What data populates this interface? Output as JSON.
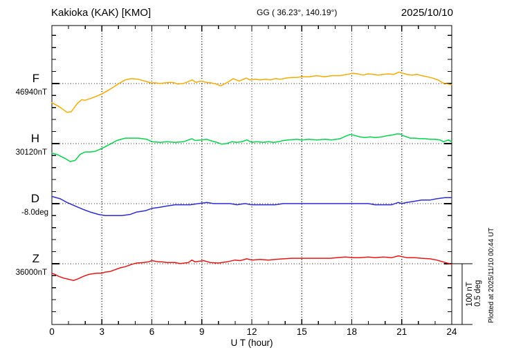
{
  "header": {
    "station": "Kakioka (KAK)  [KMO]",
    "coordinates": "GG ( 36.23°, 140.19°)",
    "date": "2025/10/10"
  },
  "axis": {
    "xlabel": "U T (hour)",
    "x_tick_labels": [
      "0",
      "3",
      "6",
      "9",
      "12",
      "15",
      "18",
      "21",
      "24"
    ]
  },
  "scale_bar": {
    "lines": [
      "100 nT",
      "0.5 deg"
    ]
  },
  "plotted_at": "Plotted at 2025/11/10 00:44 UT",
  "chart_data": {
    "type": "line",
    "title": "Kakioka (KAK) [KMO] magnetogram",
    "date": "2025/10/10",
    "xlabel": "U T (hour)",
    "x_range_hours": [
      0,
      24
    ],
    "x_major_tick_hours": [
      0,
      3,
      6,
      9,
      12,
      15,
      18,
      21,
      24
    ],
    "grid": "dotted vertical every 3 h and dotted horizontal at each component baseline",
    "legend_position": "left margin, one colored label per trace",
    "scale": {
      "bar_nT": 100,
      "bar_deg": 0.5
    },
    "series": [
      {
        "id": "F",
        "label": "F",
        "baseline_text": "46940nT",
        "baseline_value": 46940,
        "unit": "nT",
        "color": "#f6ab00",
        "points": [
          [
            0,
            46908
          ],
          [
            0.46,
            46901
          ],
          [
            0.91,
            46892
          ],
          [
            1.16,
            46893
          ],
          [
            1.54,
            46907
          ],
          [
            1.79,
            46913
          ],
          [
            1.99,
            46912
          ],
          [
            2.33,
            46915
          ],
          [
            2.7,
            46919
          ],
          [
            3.03,
            46923
          ],
          [
            3.53,
            46931
          ],
          [
            4.03,
            46940
          ],
          [
            4.4,
            46946
          ],
          [
            4.77,
            46948
          ],
          [
            5.19,
            46947
          ],
          [
            5.56,
            46944
          ],
          [
            5.94,
            46941
          ],
          [
            6.19,
            46941
          ],
          [
            6.48,
            46940
          ],
          [
            6.81,
            46941
          ],
          [
            7.1,
            46942
          ],
          [
            7.35,
            46941
          ],
          [
            7.56,
            46939
          ],
          [
            7.89,
            46940
          ],
          [
            8.18,
            46943
          ],
          [
            8.43,
            46946
          ],
          [
            8.64,
            46942
          ],
          [
            8.97,
            46944
          ],
          [
            9.26,
            46942
          ],
          [
            9.55,
            46941
          ],
          [
            9.88,
            46939
          ],
          [
            10.13,
            46936
          ],
          [
            10.34,
            46939
          ],
          [
            10.67,
            46944
          ],
          [
            10.88,
            46948
          ],
          [
            11.25,
            46944
          ],
          [
            11.67,
            46949
          ],
          [
            11.87,
            46946
          ],
          [
            12.21,
            46947
          ],
          [
            12.5,
            46946
          ],
          [
            12.83,
            46947
          ],
          [
            13.12,
            46946
          ],
          [
            13.41,
            46948
          ],
          [
            13.74,
            46947
          ],
          [
            14.03,
            46949
          ],
          [
            14.37,
            46950
          ],
          [
            14.66,
            46950
          ],
          [
            15.03,
            46951
          ],
          [
            15.44,
            46951
          ],
          [
            15.9,
            46953
          ],
          [
            16.36,
            46951
          ],
          [
            16.82,
            46953
          ],
          [
            17.27,
            46953
          ],
          [
            17.73,
            46955
          ],
          [
            18.06,
            46957
          ],
          [
            18.35,
            46956
          ],
          [
            18.68,
            46954
          ],
          [
            18.97,
            46956
          ],
          [
            19.31,
            46955
          ],
          [
            19.6,
            46954
          ],
          [
            19.89,
            46955
          ],
          [
            20.22,
            46956
          ],
          [
            20.51,
            46955
          ],
          [
            20.84,
            46959
          ],
          [
            21.3,
            46955
          ],
          [
            21.59,
            46954
          ],
          [
            21.92,
            46955
          ],
          [
            22.21,
            46953
          ],
          [
            22.55,
            46951
          ],
          [
            22.84,
            46949
          ],
          [
            23.17,
            46946
          ],
          [
            23.46,
            46941
          ],
          [
            23.79,
            46939
          ],
          [
            24,
            46938
          ]
        ]
      },
      {
        "id": "H",
        "label": "H",
        "baseline_text": "30120nT",
        "baseline_value": 30120,
        "unit": "nT",
        "color": "#00d44a",
        "points": [
          [
            0,
            30104
          ],
          [
            0.3,
            30102
          ],
          [
            0.8,
            30095
          ],
          [
            1.1,
            30090
          ],
          [
            1.4,
            30092
          ],
          [
            1.7,
            30102
          ],
          [
            2.0,
            30106
          ],
          [
            2.3,
            30106
          ],
          [
            2.6,
            30107
          ],
          [
            3.0,
            30112
          ],
          [
            3.5,
            30119
          ],
          [
            3.9,
            30125
          ],
          [
            4.4,
            30129
          ],
          [
            4.8,
            30129
          ],
          [
            5.2,
            30129
          ],
          [
            5.7,
            30127
          ],
          [
            6.0,
            30123
          ],
          [
            6.5,
            30122
          ],
          [
            6.9,
            30123
          ],
          [
            7.4,
            30122
          ],
          [
            7.9,
            30123
          ],
          [
            8.2,
            30126
          ],
          [
            8.4,
            30128
          ],
          [
            8.6,
            30125
          ],
          [
            9.0,
            30126
          ],
          [
            9.3,
            30127
          ],
          [
            9.5,
            30125
          ],
          [
            9.9,
            30122
          ],
          [
            10.2,
            30119
          ],
          [
            10.5,
            30120
          ],
          [
            10.8,
            30123
          ],
          [
            11.1,
            30122
          ],
          [
            11.4,
            30123
          ],
          [
            11.7,
            30126
          ],
          [
            12.0,
            30122
          ],
          [
            12.3,
            30123
          ],
          [
            12.7,
            30122
          ],
          [
            13.0,
            30123
          ],
          [
            13.3,
            30122
          ],
          [
            13.6,
            30123
          ],
          [
            13.9,
            30125
          ],
          [
            14.2,
            30126
          ],
          [
            14.7,
            30127
          ],
          [
            15.0,
            30126
          ],
          [
            15.4,
            30127
          ],
          [
            15.9,
            30126
          ],
          [
            16.4,
            30127
          ],
          [
            16.8,
            30126
          ],
          [
            17.3,
            30128
          ],
          [
            17.7,
            30133
          ],
          [
            17.9,
            30135
          ],
          [
            18.1,
            30134
          ],
          [
            18.5,
            30131
          ],
          [
            18.8,
            30130
          ],
          [
            19.1,
            30131
          ],
          [
            19.4,
            30130
          ],
          [
            19.8,
            30131
          ],
          [
            20.1,
            30133
          ],
          [
            20.4,
            30134
          ],
          [
            20.7,
            30136
          ],
          [
            20.9,
            30136
          ],
          [
            21.1,
            30133
          ],
          [
            21.5,
            30129
          ],
          [
            21.8,
            30129
          ],
          [
            22.1,
            30128
          ],
          [
            22.4,
            30128
          ],
          [
            22.7,
            30127
          ],
          [
            23.0,
            30127
          ],
          [
            23.3,
            30126
          ],
          [
            23.5,
            30123
          ],
          [
            23.8,
            30126
          ],
          [
            24.0,
            30123
          ]
        ]
      },
      {
        "id": "D",
        "label": "D",
        "baseline_text": "-8.0deg",
        "baseline_value": -8.0,
        "unit": "deg",
        "color": "#2b2bd6",
        "points": [
          [
            0,
            -7.94
          ],
          [
            0.5,
            -7.96
          ],
          [
            0.9,
            -7.99
          ],
          [
            1.4,
            -8.02
          ],
          [
            1.9,
            -8.05
          ],
          [
            2.3,
            -8.07
          ],
          [
            2.8,
            -8.09
          ],
          [
            3.2,
            -8.1
          ],
          [
            3.7,
            -8.1
          ],
          [
            4.2,
            -8.1
          ],
          [
            4.7,
            -8.09
          ],
          [
            5.1,
            -8.07
          ],
          [
            5.6,
            -8.06
          ],
          [
            6.0,
            -8.04
          ],
          [
            6.5,
            -8.03
          ],
          [
            6.9,
            -8.02
          ],
          [
            7.4,
            -8.01
          ],
          [
            7.9,
            -8.01
          ],
          [
            8.3,
            -8.01
          ],
          [
            8.8,
            -8.0
          ],
          [
            9.3,
            -7.99
          ],
          [
            9.7,
            -8.0
          ],
          [
            10.2,
            -8.0
          ],
          [
            10.7,
            -8.0
          ],
          [
            11.1,
            -8.01
          ],
          [
            11.6,
            -8.0
          ],
          [
            12.0,
            -8.01
          ],
          [
            12.5,
            -8.01
          ],
          [
            13.0,
            -8.01
          ],
          [
            13.4,
            -8.01
          ],
          [
            13.9,
            -8.0
          ],
          [
            14.4,
            -8.0
          ],
          [
            14.8,
            -8.0
          ],
          [
            15.3,
            -8.0
          ],
          [
            15.7,
            -8.0
          ],
          [
            16.2,
            -8.0
          ],
          [
            16.7,
            -8.0
          ],
          [
            17.1,
            -8.0
          ],
          [
            17.6,
            -8.0
          ],
          [
            18.1,
            -8.0
          ],
          [
            18.5,
            -8.0
          ],
          [
            19.0,
            -8.0
          ],
          [
            19.4,
            -8.01
          ],
          [
            19.9,
            -8.01
          ],
          [
            20.4,
            -8.01
          ],
          [
            20.8,
            -7.99
          ],
          [
            21.0,
            -8.0
          ],
          [
            21.3,
            -7.99
          ],
          [
            21.8,
            -7.98
          ],
          [
            22.2,
            -7.97
          ],
          [
            22.7,
            -7.97
          ],
          [
            23.1,
            -7.96
          ],
          [
            23.6,
            -7.95
          ],
          [
            24.0,
            -7.95
          ]
        ]
      },
      {
        "id": "Z",
        "label": "Z",
        "baseline_text": "36000nT",
        "baseline_value": 36000,
        "unit": "nT",
        "color": "#e81414",
        "points": [
          [
            0,
            35984
          ],
          [
            0.2,
            35982
          ],
          [
            0.4,
            35979
          ],
          [
            0.7,
            35976
          ],
          [
            1.0,
            35974
          ],
          [
            1.3,
            35972
          ],
          [
            1.6,
            35975
          ],
          [
            1.9,
            35979
          ],
          [
            2.2,
            35982
          ],
          [
            2.4,
            35983
          ],
          [
            2.7,
            35984
          ],
          [
            3.0,
            35984
          ],
          [
            3.2,
            35986
          ],
          [
            3.5,
            35987
          ],
          [
            3.8,
            35990
          ],
          [
            4.1,
            35993
          ],
          [
            4.4,
            35995
          ],
          [
            4.8,
            35999
          ],
          [
            5.1,
            36001
          ],
          [
            5.5,
            36002
          ],
          [
            5.8,
            36003
          ],
          [
            6.0,
            36005
          ],
          [
            6.4,
            36003
          ],
          [
            6.6,
            36003
          ],
          [
            6.9,
            36002
          ],
          [
            7.1,
            36002
          ],
          [
            7.4,
            36002
          ],
          [
            7.7,
            36000
          ],
          [
            8.2,
            36002
          ],
          [
            8.4,
            36006
          ],
          [
            8.6,
            36003
          ],
          [
            9.1,
            36005
          ],
          [
            9.5,
            36002
          ],
          [
            10.0,
            36001
          ],
          [
            10.5,
            36003
          ],
          [
            11.0,
            36006
          ],
          [
            11.3,
            36005
          ],
          [
            11.7,
            36008
          ],
          [
            12.0,
            36006
          ],
          [
            12.5,
            36007
          ],
          [
            13.0,
            36006
          ],
          [
            13.4,
            36007
          ],
          [
            13.9,
            36008
          ],
          [
            14.4,
            36009
          ],
          [
            14.8,
            36009
          ],
          [
            15.3,
            36009
          ],
          [
            15.7,
            36009
          ],
          [
            16.2,
            36009
          ],
          [
            16.7,
            36009
          ],
          [
            17.1,
            36010
          ],
          [
            17.6,
            36011
          ],
          [
            18.1,
            36010
          ],
          [
            18.5,
            36010
          ],
          [
            19.0,
            36011
          ],
          [
            19.4,
            36010
          ],
          [
            19.9,
            36011
          ],
          [
            20.4,
            36010
          ],
          [
            20.8,
            36013
          ],
          [
            21.3,
            36010
          ],
          [
            21.8,
            36010
          ],
          [
            22.2,
            36009
          ],
          [
            22.7,
            36008
          ],
          [
            23.1,
            36006
          ],
          [
            23.6,
            36002
          ],
          [
            24.0,
            35999
          ]
        ]
      }
    ]
  }
}
